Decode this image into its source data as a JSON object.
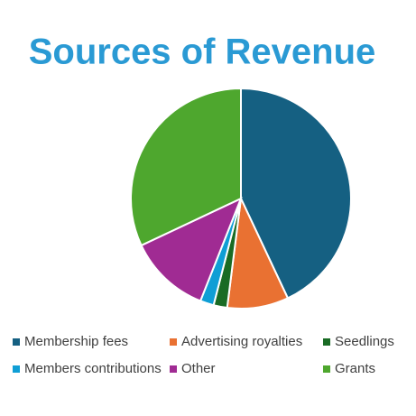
{
  "chart_data": {
    "type": "pie",
    "title": "Sources of Revenue",
    "categories": [
      "Membership fees",
      "Advertising royalties",
      "Seedlings",
      "Members contributions",
      "Other",
      "Grants"
    ],
    "values": [
      43,
      9,
      2,
      2,
      12,
      32
    ],
    "colors": [
      "#156082",
      "#e97132",
      "#196b24",
      "#0f9ed5",
      "#a02b93",
      "#4ea72e"
    ],
    "legend": "bottom"
  }
}
